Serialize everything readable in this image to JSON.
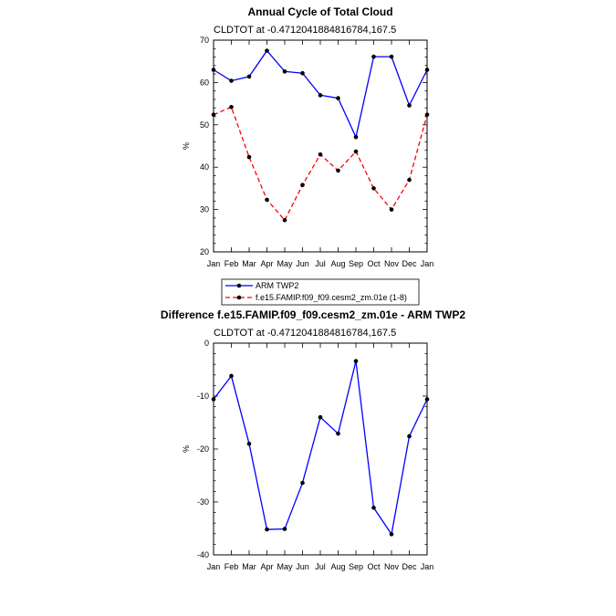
{
  "chart_data": [
    {
      "type": "line",
      "title": "Annual Cycle of Total Cloud",
      "subtitle": "CLDTOT at -0.4712041884816784,167.5",
      "xlabel": "",
      "ylabel": "%",
      "categories": [
        "Jan",
        "Feb",
        "Mar",
        "Apr",
        "May",
        "Jun",
        "Jul",
        "Aug",
        "Sep",
        "Oct",
        "Nov",
        "Dec",
        "Jan"
      ],
      "ylim": [
        20,
        70
      ],
      "yticks": [
        20,
        30,
        40,
        50,
        60,
        70
      ],
      "series": [
        {
          "name": "ARM TWP2",
          "color": "#0000ff",
          "dash": "solid",
          "values": [
            63.0,
            60.4,
            61.4,
            67.5,
            62.6,
            62.2,
            57.0,
            56.3,
            47.1,
            66.1,
            66.1,
            54.6,
            63.0
          ]
        },
        {
          "name": "f.e15.FAMIP.f09_f09.cesm2_zm.01e (1-8)",
          "color": "#ff0000",
          "dash": "dashed",
          "values": [
            52.4,
            54.2,
            42.4,
            32.3,
            27.5,
            35.8,
            43.0,
            39.2,
            43.7,
            35.0,
            30.0,
            37.0,
            52.4
          ]
        }
      ],
      "legend": "below"
    },
    {
      "type": "line",
      "title": "Difference f.e15.FAMIP.f09_f09.cesm2_zm.01e - ARM TWP2",
      "subtitle": "CLDTOT at -0.4712041884816784,167.5",
      "xlabel": "",
      "ylabel": "%",
      "categories": [
        "Jan",
        "Feb",
        "Mar",
        "Apr",
        "May",
        "Jun",
        "Jul",
        "Aug",
        "Sep",
        "Oct",
        "Nov",
        "Dec",
        "Jan"
      ],
      "ylim": [
        -40,
        0
      ],
      "yticks": [
        -40,
        -30,
        -20,
        -10,
        0
      ],
      "series": [
        {
          "name": "Difference",
          "color": "#0000ff",
          "dash": "solid",
          "values": [
            -10.6,
            -6.2,
            -19.0,
            -35.2,
            -35.1,
            -26.4,
            -14.0,
            -17.1,
            -3.4,
            -31.1,
            -36.1,
            -17.6,
            -10.6
          ]
        }
      ]
    }
  ]
}
